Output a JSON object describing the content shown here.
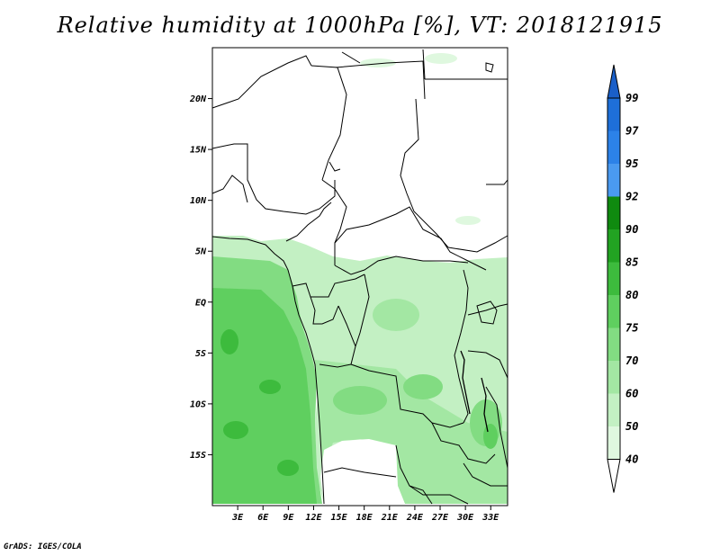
{
  "title": "Relative humidity at 1000hPa [%], VT: 2018121915",
  "footer": "GrADS: IGES/COLA",
  "map": {
    "lon_range": [
      0,
      35
    ],
    "lat_range": [
      -20,
      25
    ],
    "lat_ticks": [
      {
        "value": 20,
        "label": "20N"
      },
      {
        "value": 15,
        "label": "15N"
      },
      {
        "value": 10,
        "label": "10N"
      },
      {
        "value": 5,
        "label": "5N"
      },
      {
        "value": 0,
        "label": "EQ"
      },
      {
        "value": -5,
        "label": "5S"
      },
      {
        "value": -10,
        "label": "10S"
      },
      {
        "value": -15,
        "label": "15S"
      }
    ],
    "lon_ticks": [
      {
        "value": 3,
        "label": "3E"
      },
      {
        "value": 6,
        "label": "6E"
      },
      {
        "value": 9,
        "label": "9E"
      },
      {
        "value": 12,
        "label": "12E"
      },
      {
        "value": 15,
        "label": "15E"
      },
      {
        "value": 18,
        "label": "18E"
      },
      {
        "value": 21,
        "label": "21E"
      },
      {
        "value": 24,
        "label": "24E"
      },
      {
        "value": 27,
        "label": "27E"
      },
      {
        "value": 30,
        "label": "30E"
      },
      {
        "value": 33,
        "label": "33E"
      }
    ]
  },
  "colorbar": {
    "levels": [
      {
        "label": "99",
        "color": "#1e6fd9"
      },
      {
        "label": "97",
        "color": "#2c82e8"
      },
      {
        "label": "95",
        "color": "#4a9af0"
      },
      {
        "label": "92",
        "color": "#0f8a0f"
      },
      {
        "label": "90",
        "color": "#22a322"
      },
      {
        "label": "85",
        "color": "#3dbb3d"
      },
      {
        "label": "80",
        "color": "#5fcf5f"
      },
      {
        "label": "75",
        "color": "#82dc82"
      },
      {
        "label": "70",
        "color": "#a3e7a3"
      },
      {
        "label": "60",
        "color": "#c3f0c3"
      },
      {
        "label": "50",
        "color": "#dff8df"
      },
      {
        "label": "40",
        "color": "#f2fcf2"
      }
    ],
    "top_arrow_color": "#1a5fc8",
    "bottom_arrow_color": "#ffffff"
  }
}
